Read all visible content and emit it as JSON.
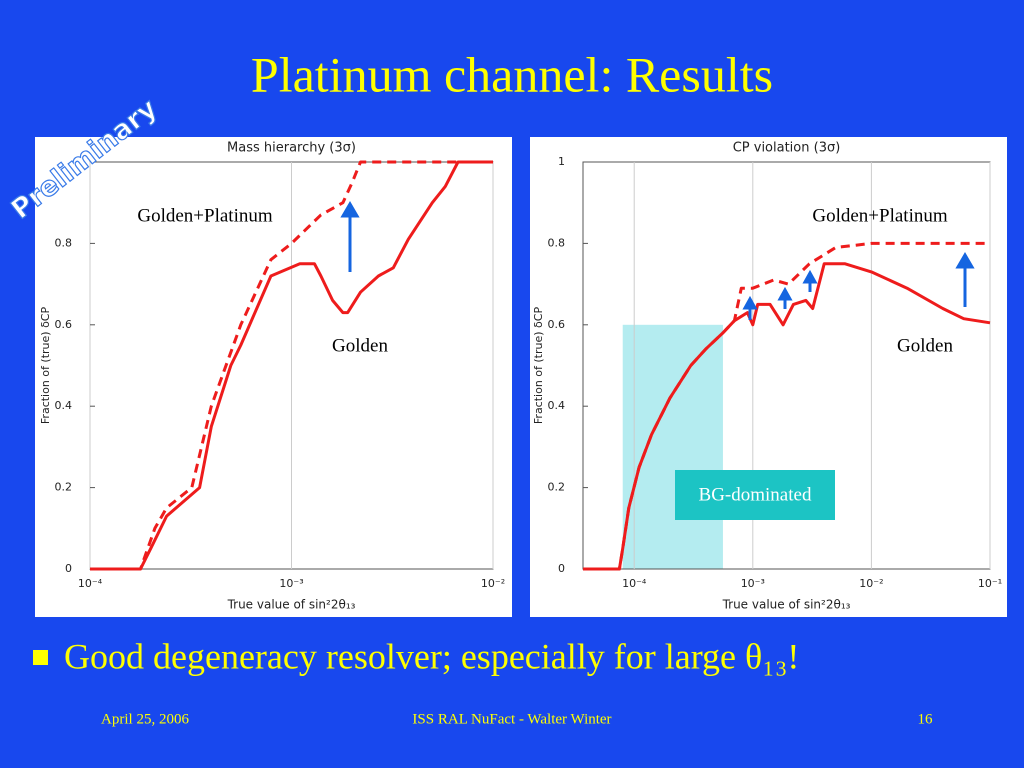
{
  "title": "Platinum channel: Results",
  "stamp": "Preliminary",
  "chart_data": [
    {
      "type": "line",
      "title": "Mass hierarchy (3σ)",
      "x_label": "True value of sin²2θ₁₃",
      "y_label": "Fraction of (true) δCP",
      "x_scale": "log",
      "xlim": [
        0.0001,
        0.01
      ],
      "ylim": [
        0,
        1
      ],
      "xticks": [
        {
          "value": 0.0001,
          "label": "10⁻⁴"
        },
        {
          "value": 0.001,
          "label": "10⁻³"
        },
        {
          "value": 0.01,
          "label": "10⁻²"
        }
      ],
      "yticks": [
        0,
        0.2,
        0.4,
        0.6,
        0.8
      ],
      "grid": true,
      "series": [
        {
          "name": "Golden",
          "color": "#ee1c1c",
          "dash": false,
          "x": [
            0.0001,
            0.000178,
            0.0002,
            0.00024,
            0.00035,
            0.0004,
            0.0005,
            0.00056,
            0.00079,
            0.0011,
            0.0013,
            0.0014,
            0.0016,
            0.0018,
            0.0019,
            0.0022,
            0.0027,
            0.0032,
            0.0038,
            0.005,
            0.0058,
            0.0067,
            0.01
          ],
          "values": [
            0,
            0,
            0.05,
            0.13,
            0.2,
            0.35,
            0.5,
            0.55,
            0.72,
            0.75,
            0.75,
            0.72,
            0.66,
            0.63,
            0.63,
            0.68,
            0.72,
            0.74,
            0.81,
            0.9,
            0.94,
            1,
            1
          ]
        },
        {
          "name": "Golden+Platinum",
          "color": "#ee1c1c",
          "dash": true,
          "x": [
            0.0001,
            0.000178,
            0.00021,
            0.00024,
            0.00032,
            0.0004,
            0.00045,
            0.00056,
            0.00079,
            0.001,
            0.0014,
            0.0018,
            0.002,
            0.0022,
            0.0045,
            0.01
          ],
          "values": [
            0,
            0,
            0.1,
            0.15,
            0.2,
            0.4,
            0.47,
            0.6,
            0.76,
            0.8,
            0.87,
            0.9,
            0.95,
            1,
            1,
            1
          ]
        }
      ]
    },
    {
      "type": "line",
      "title": "CP violation (3σ)",
      "x_label": "True value of sin²2θ₁₃",
      "y_label": "Fraction of (true) δCP",
      "x_scale": "log",
      "xlim": [
        3.7e-05,
        0.1
      ],
      "ylim": [
        0,
        1
      ],
      "xticks": [
        {
          "value": 0.0001,
          "label": "10⁻⁴"
        },
        {
          "value": 0.001,
          "label": "10⁻³"
        },
        {
          "value": 0.01,
          "label": "10⁻²"
        },
        {
          "value": 0.1,
          "label": "10⁻¹"
        }
      ],
      "yticks": [
        0,
        0.2,
        0.4,
        0.6,
        0.8,
        1
      ],
      "grid": true,
      "shaded_region": {
        "x0": 8e-05,
        "x1": 0.00056,
        "y1": 0.6,
        "label": "BG-dominated"
      },
      "series": [
        {
          "name": "Golden",
          "color": "#ee1c1c",
          "dash": false,
          "x": [
            3.7e-05,
            7.5e-05,
            8e-05,
            9e-05,
            0.00011,
            0.00014,
            0.0002,
            0.0003,
            0.0004,
            0.00056,
            0.0007,
            0.0009,
            0.001,
            0.0011,
            0.0014,
            0.0018,
            0.0022,
            0.0028,
            0.0032,
            0.004,
            0.006,
            0.01,
            0.02,
            0.04,
            0.06,
            0.1
          ],
          "values": [
            0,
            0,
            0.05,
            0.15,
            0.25,
            0.33,
            0.42,
            0.5,
            0.54,
            0.58,
            0.61,
            0.63,
            0.6,
            0.65,
            0.65,
            0.6,
            0.65,
            0.66,
            0.64,
            0.75,
            0.75,
            0.73,
            0.69,
            0.64,
            0.615,
            0.605
          ]
        },
        {
          "name": "Golden+Platinum",
          "color": "#ee1c1c",
          "dash": true,
          "x": [
            3.7e-05,
            7.5e-05,
            8e-05,
            9e-05,
            0.00011,
            0.00014,
            0.0002,
            0.0003,
            0.0004,
            0.00056,
            0.0007,
            0.0008,
            0.001,
            0.0015,
            0.002,
            0.003,
            0.005,
            0.01,
            0.02,
            0.1
          ],
          "values": [
            0,
            0,
            0.05,
            0.15,
            0.25,
            0.33,
            0.42,
            0.5,
            0.54,
            0.58,
            0.61,
            0.69,
            0.69,
            0.71,
            0.7,
            0.75,
            0.79,
            0.8,
            0.8,
            0.8
          ]
        }
      ]
    }
  ],
  "bullet": "Good degeneracy resolver; especially for large θ₁₃!",
  "footer": {
    "date": "April 25, 2006",
    "center": "ISS RAL NuFact - Walter Winter",
    "page": "16"
  }
}
